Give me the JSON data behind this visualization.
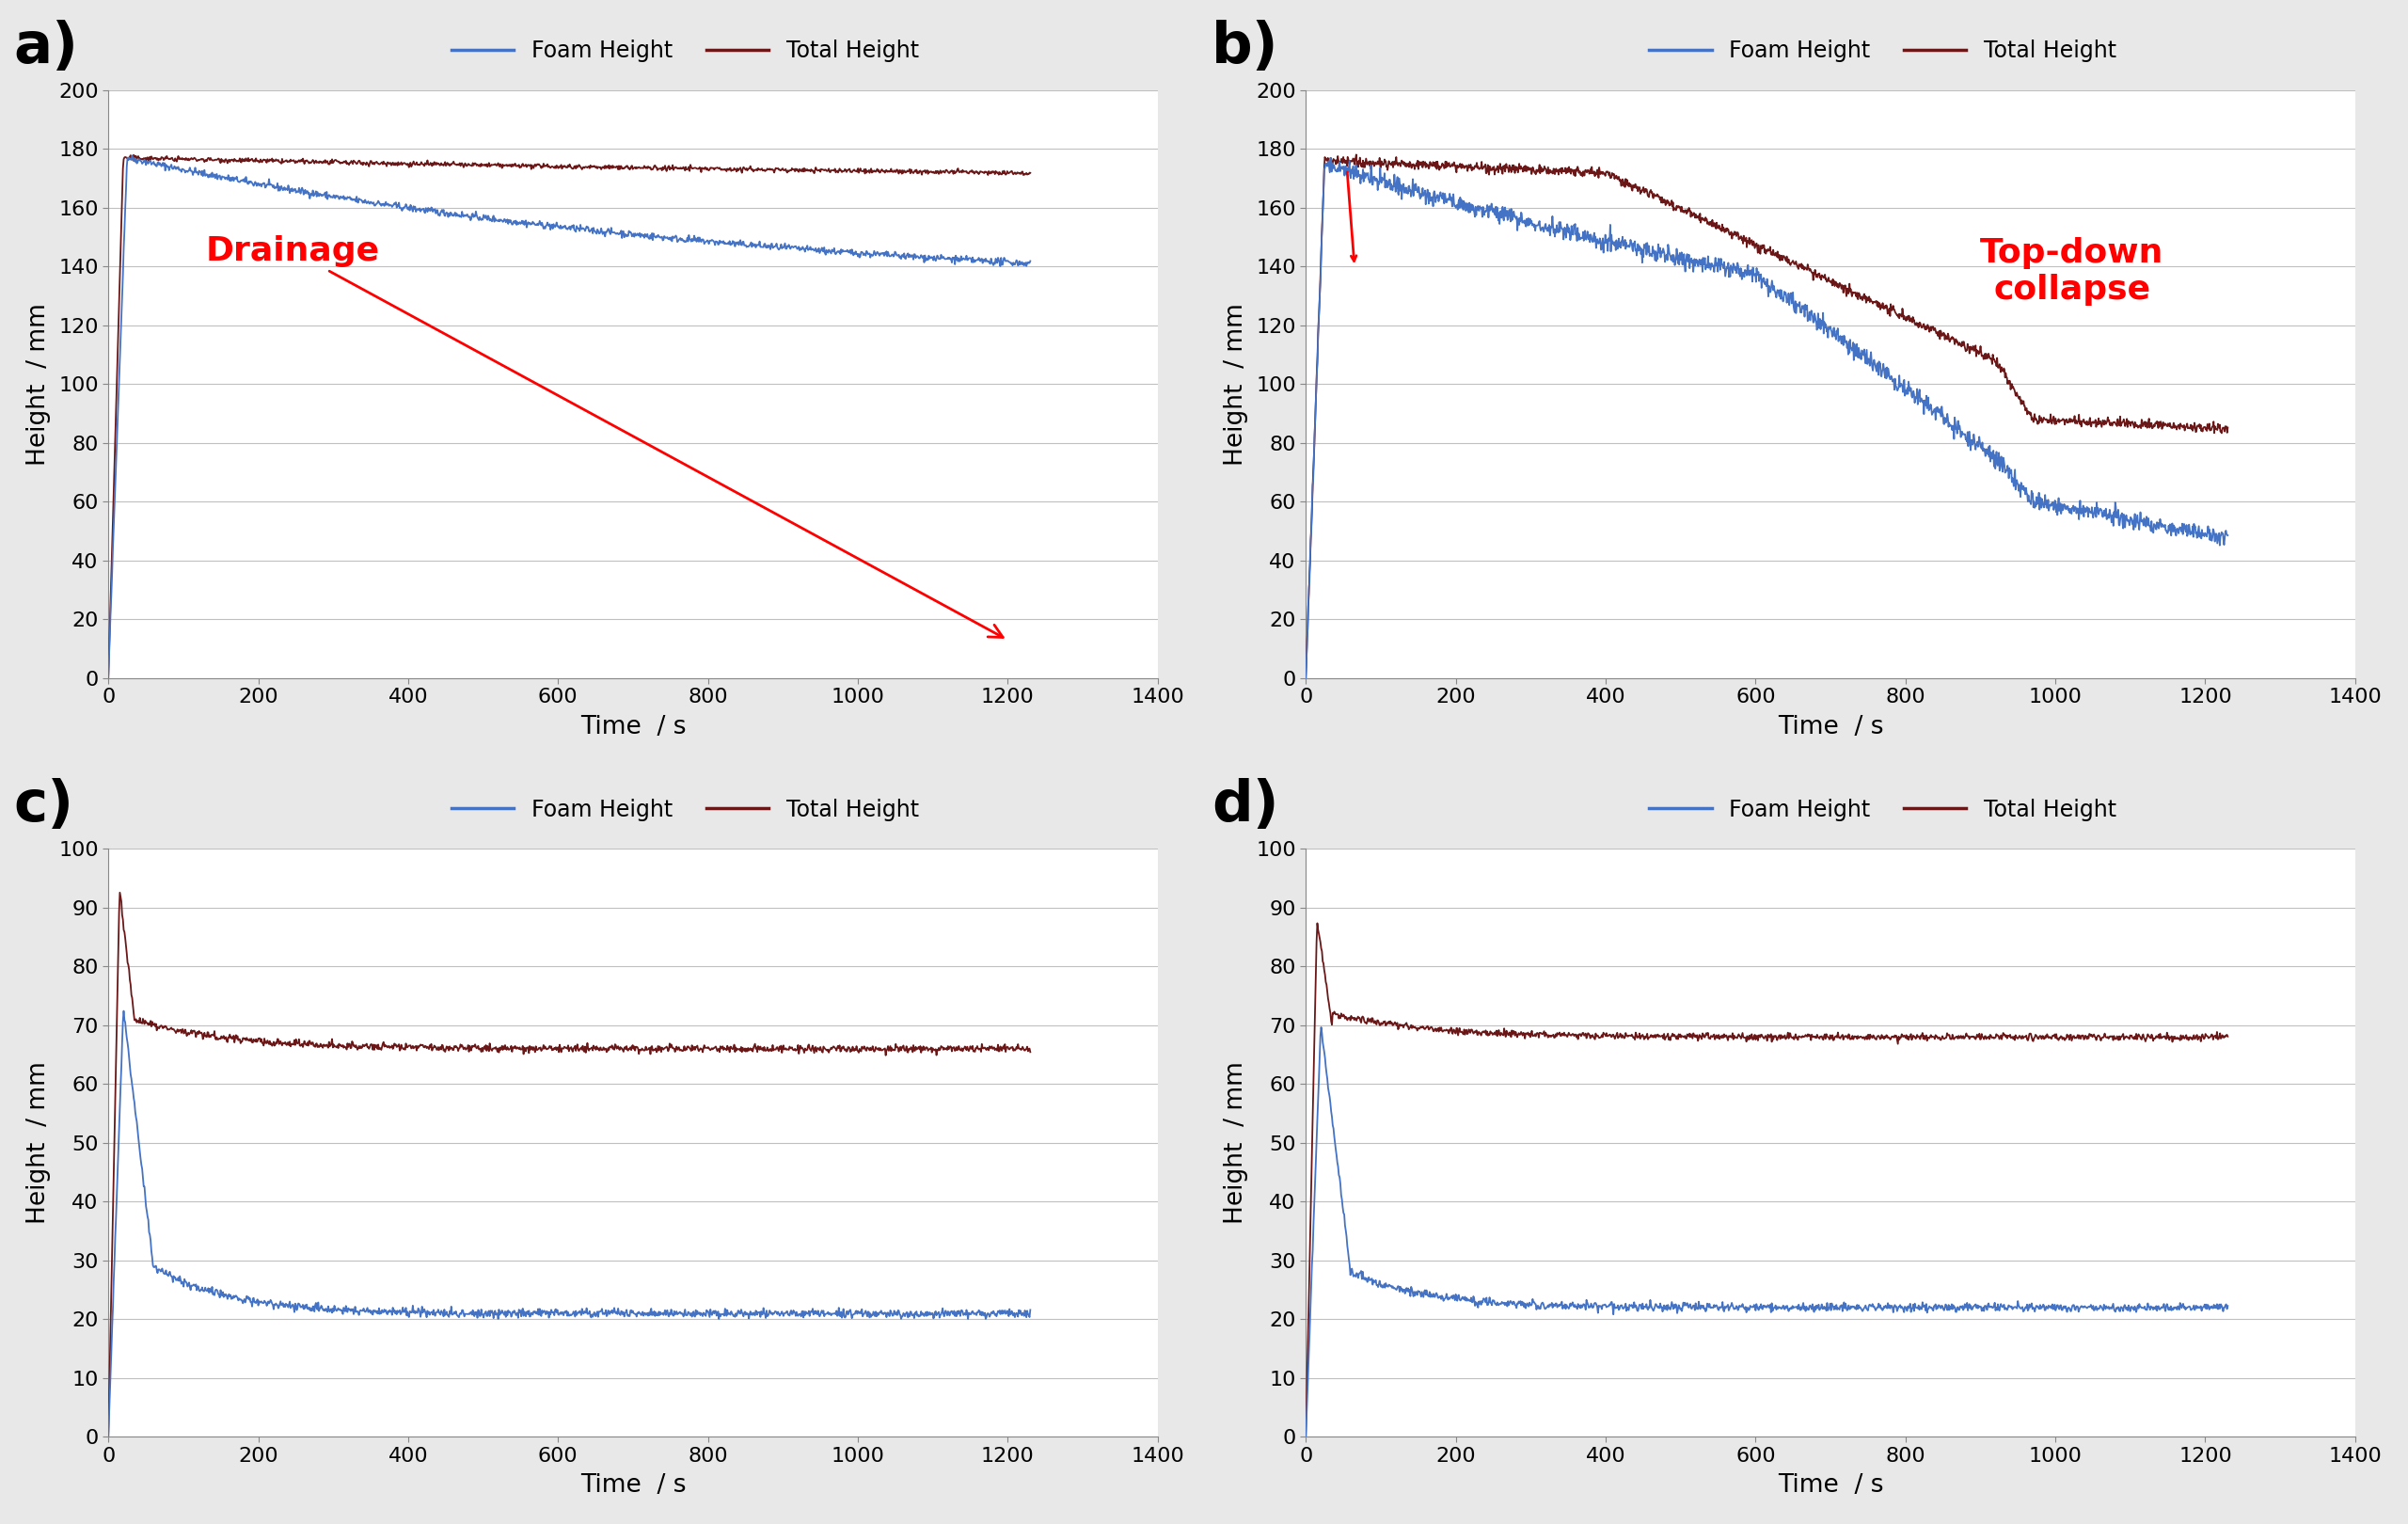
{
  "foam_color": "#4472C4",
  "total_color": "#6B1717",
  "annotation_color": "red",
  "bg_color": "#E8E8E8",
  "panel_bg": "#FFFFFF",
  "grid_color": "#C0C0C0",
  "label_a": "a)",
  "label_b": "b)",
  "label_c": "c)",
  "label_d": "d)",
  "xlabel": "Time  / s",
  "ylabel": "Height  / mm",
  "legend_foam": "Foam Height",
  "legend_total": "Total Height",
  "annotation_a": "Drainage",
  "annotation_b": "Top-down\ncollapse",
  "xlim": [
    0,
    1400
  ],
  "xticks": [
    0,
    200,
    400,
    600,
    800,
    1000,
    1200,
    1400
  ],
  "ylim_ab": [
    0,
    200
  ],
  "yticks_ab": [
    0,
    20,
    40,
    60,
    80,
    100,
    120,
    140,
    160,
    180,
    200
  ],
  "ylim_cd": [
    0,
    100
  ],
  "yticks_cd": [
    0,
    10,
    20,
    30,
    40,
    50,
    60,
    70,
    80,
    90,
    100
  ],
  "axis_label_fontsize": 19,
  "tick_fontsize": 16,
  "legend_fontsize": 17,
  "annotation_fontsize": 26,
  "panel_label_fontsize": 44
}
